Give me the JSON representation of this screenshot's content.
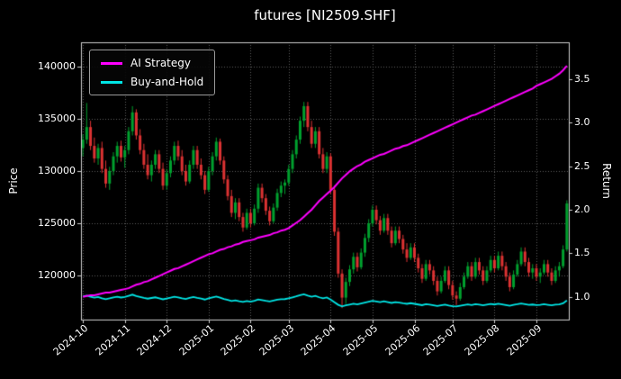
{
  "title": "futures [NI2509.SHF]",
  "axes": {
    "left_label": "Price",
    "right_label": "Return"
  },
  "legend": {
    "items": [
      {
        "label": "AI Strategy",
        "series": "ai"
      },
      {
        "label": "Buy-and-Hold",
        "series": "bh"
      }
    ],
    "position": "upper-left"
  },
  "colors": {
    "bg": "#000000",
    "text": "#ffffff",
    "grid": "#5f5f5f",
    "frame": "#cfcfcf",
    "up": "#00a02e",
    "down": "#dc3232",
    "ai": "#ff00ff",
    "bh": "#00e5e5"
  },
  "chart_data": {
    "type": "candlestick+line",
    "title": "futures [NI2509.SHF]",
    "xlabel": "",
    "ylabel_left": "Price",
    "ylabel_right": "Return",
    "grid": "dotted",
    "legend_position": "upper-left",
    "price_ylim": [
      115800,
      142300
    ],
    "return_ylim": [
      0.74,
      3.92
    ],
    "price_ticks": [
      120000,
      125000,
      130000,
      135000,
      140000
    ],
    "return_ticks": [
      1.0,
      1.5,
      2.0,
      2.5,
      3.0,
      3.5
    ],
    "x_ticks": [
      {
        "label": "2024-10",
        "index": 0
      },
      {
        "label": "2024-11",
        "index": 11
      },
      {
        "label": "2024-12",
        "index": 22
      },
      {
        "label": "2025-01",
        "index": 33
      },
      {
        "label": "2025-02",
        "index": 44
      },
      {
        "label": "2025-03",
        "index": 54
      },
      {
        "label": "2025-04",
        "index": 65
      },
      {
        "label": "2025-05",
        "index": 76
      },
      {
        "label": "2025-06",
        "index": 87
      },
      {
        "label": "2025-07",
        "index": 97
      },
      {
        "label": "2025-08",
        "index": 108
      },
      {
        "label": "2025-09",
        "index": 119
      }
    ],
    "candles": [
      [
        132200,
        133500,
        131400,
        133000
      ],
      [
        133000,
        136500,
        132600,
        134200
      ],
      [
        134200,
        134800,
        132000,
        132400
      ],
      [
        132400,
        133200,
        130800,
        131200
      ],
      [
        131200,
        132600,
        130600,
        132200
      ],
      [
        132200,
        132800,
        129800,
        130200
      ],
      [
        130200,
        131000,
        128400,
        128800
      ],
      [
        128800,
        130400,
        128200,
        130000
      ],
      [
        130000,
        131800,
        129600,
        131400
      ],
      [
        131400,
        132800,
        130800,
        132400
      ],
      [
        132400,
        132900,
        130900,
        131300
      ],
      [
        131300,
        132400,
        130300,
        132000
      ],
      [
        132000,
        134200,
        131600,
        133800
      ],
      [
        133800,
        136200,
        133400,
        135600
      ],
      [
        135600,
        135900,
        133000,
        133400
      ],
      [
        133400,
        134000,
        131600,
        132000
      ],
      [
        132000,
        132600,
        130200,
        130600
      ],
      [
        130600,
        131600,
        129200,
        129600
      ],
      [
        129600,
        131000,
        129000,
        130600
      ],
      [
        130600,
        132000,
        130200,
        131600
      ],
      [
        131600,
        132000,
        129800,
        130200
      ],
      [
        130200,
        130800,
        128200,
        128600
      ],
      [
        128600,
        130200,
        128200,
        129800
      ],
      [
        129800,
        131400,
        129400,
        131000
      ],
      [
        131000,
        132800,
        130600,
        132400
      ],
      [
        132400,
        132900,
        131000,
        131400
      ],
      [
        131400,
        132000,
        129600,
        130000
      ],
      [
        130000,
        130600,
        128600,
        129000
      ],
      [
        129000,
        131000,
        128800,
        130600
      ],
      [
        130600,
        132400,
        130200,
        132000
      ],
      [
        132000,
        132400,
        130200,
        130600
      ],
      [
        130600,
        131200,
        129200,
        129600
      ],
      [
        129600,
        130000,
        127800,
        128200
      ],
      [
        128200,
        130400,
        128000,
        130000
      ],
      [
        130000,
        131800,
        129600,
        131400
      ],
      [
        131400,
        133200,
        131000,
        132800
      ],
      [
        132800,
        133100,
        130600,
        131000
      ],
      [
        131000,
        131400,
        128800,
        129200
      ],
      [
        129200,
        129600,
        127200,
        127600
      ],
      [
        127600,
        128200,
        125600,
        126000
      ],
      [
        126000,
        127400,
        125400,
        127000
      ],
      [
        127000,
        127400,
        125200,
        125600
      ],
      [
        125600,
        126000,
        124200,
        124600
      ],
      [
        124600,
        126400,
        124400,
        126000
      ],
      [
        126000,
        126400,
        124600,
        125000
      ],
      [
        125000,
        126800,
        124800,
        126400
      ],
      [
        126400,
        128800,
        126000,
        128400
      ],
      [
        128400,
        128800,
        127000,
        127400
      ],
      [
        127400,
        127800,
        125800,
        126200
      ],
      [
        126200,
        126600,
        124800,
        125200
      ],
      [
        125200,
        126900,
        125000,
        126500
      ],
      [
        126500,
        128300,
        126200,
        127900
      ],
      [
        127900,
        129000,
        127500,
        128600
      ],
      [
        128600,
        129200,
        127800,
        128900
      ],
      [
        128900,
        130600,
        128600,
        130200
      ],
      [
        130200,
        132000,
        129800,
        131600
      ],
      [
        131600,
        133400,
        131200,
        133000
      ],
      [
        133000,
        135200,
        132600,
        134800
      ],
      [
        134800,
        136600,
        134200,
        136200
      ],
      [
        136200,
        136600,
        133800,
        134200
      ],
      [
        134200,
        134800,
        132200,
        132600
      ],
      [
        132600,
        134200,
        132200,
        133800
      ],
      [
        133800,
        134200,
        131200,
        131600
      ],
      [
        131600,
        132200,
        129800,
        130200
      ],
      [
        130200,
        131800,
        129800,
        131400
      ],
      [
        131400,
        131700,
        127800,
        128200
      ],
      [
        128200,
        128600,
        123800,
        124200
      ],
      [
        124200,
        124600,
        119800,
        120200
      ],
      [
        120200,
        120600,
        116900,
        117900
      ],
      [
        117900,
        119800,
        117300,
        119400
      ],
      [
        119400,
        121000,
        119000,
        120600
      ],
      [
        120600,
        122200,
        120200,
        121800
      ],
      [
        121800,
        122200,
        120400,
        120800
      ],
      [
        120800,
        122600,
        120600,
        122200
      ],
      [
        122200,
        124000,
        121800,
        123600
      ],
      [
        123600,
        125400,
        123200,
        125000
      ],
      [
        125000,
        126700,
        124700,
        126300
      ],
      [
        126300,
        126700,
        124900,
        125300
      ],
      [
        125300,
        125700,
        123900,
        124300
      ],
      [
        124300,
        125900,
        124100,
        125500
      ],
      [
        125500,
        125900,
        123900,
        124300
      ],
      [
        124300,
        124700,
        122700,
        123100
      ],
      [
        123100,
        124700,
        122900,
        124300
      ],
      [
        124300,
        124700,
        123100,
        123500
      ],
      [
        123500,
        123900,
        122100,
        122500
      ],
      [
        122500,
        123100,
        121300,
        121700
      ],
      [
        121700,
        123100,
        121500,
        122700
      ],
      [
        122700,
        123100,
        121300,
        121700
      ],
      [
        121700,
        122100,
        120300,
        120700
      ],
      [
        120700,
        121100,
        119300,
        119700
      ],
      [
        119700,
        121500,
        119500,
        121100
      ],
      [
        121100,
        121500,
        120100,
        120500
      ],
      [
        120500,
        120900,
        119100,
        119500
      ],
      [
        119500,
        119900,
        118100,
        118500
      ],
      [
        118500,
        119900,
        118300,
        119500
      ],
      [
        119500,
        120900,
        119300,
        120500
      ],
      [
        120500,
        120900,
        118700,
        119100
      ],
      [
        119100,
        119500,
        117700,
        118100
      ],
      [
        118100,
        118500,
        117200,
        117800
      ],
      [
        117800,
        119300,
        117600,
        118900
      ],
      [
        118900,
        120300,
        118700,
        119900
      ],
      [
        119900,
        121300,
        119700,
        120900
      ],
      [
        120900,
        121300,
        119500,
        119900
      ],
      [
        119900,
        121700,
        119700,
        121300
      ],
      [
        121300,
        121700,
        120100,
        120500
      ],
      [
        120500,
        120900,
        119100,
        119500
      ],
      [
        119500,
        120900,
        119300,
        120500
      ],
      [
        120500,
        121900,
        120300,
        121500
      ],
      [
        121500,
        121900,
        120300,
        120700
      ],
      [
        120700,
        122300,
        120500,
        121900
      ],
      [
        121900,
        122300,
        120500,
        120900
      ],
      [
        120900,
        121300,
        119500,
        119900
      ],
      [
        119900,
        120300,
        118500,
        118900
      ],
      [
        118900,
        120500,
        118700,
        120100
      ],
      [
        120100,
        121500,
        119900,
        121100
      ],
      [
        121100,
        122700,
        120900,
        122300
      ],
      [
        122300,
        122700,
        120900,
        121300
      ],
      [
        121300,
        121700,
        119900,
        120300
      ],
      [
        120300,
        121100,
        119700,
        120700
      ],
      [
        120700,
        121100,
        119500,
        119900
      ],
      [
        119900,
        120700,
        119300,
        120300
      ],
      [
        120300,
        121500,
        120100,
        121100
      ],
      [
        121100,
        121500,
        119900,
        120300
      ],
      [
        120300,
        120700,
        119100,
        119500
      ],
      [
        119500,
        120900,
        119300,
        120500
      ],
      [
        120500,
        121300,
        119900,
        120900
      ],
      [
        120900,
        122900,
        120700,
        122500
      ],
      [
        122500,
        127200,
        122300,
        126900
      ]
    ],
    "ai_returns": [
      1.0,
      1.01,
      1.02,
      1.02,
      1.03,
      1.04,
      1.05,
      1.05,
      1.06,
      1.07,
      1.08,
      1.09,
      1.1,
      1.12,
      1.14,
      1.15,
      1.17,
      1.18,
      1.2,
      1.22,
      1.24,
      1.26,
      1.28,
      1.3,
      1.32,
      1.33,
      1.35,
      1.37,
      1.39,
      1.41,
      1.43,
      1.45,
      1.47,
      1.49,
      1.5,
      1.52,
      1.54,
      1.55,
      1.57,
      1.58,
      1.6,
      1.61,
      1.63,
      1.64,
      1.65,
      1.66,
      1.68,
      1.69,
      1.7,
      1.71,
      1.73,
      1.74,
      1.76,
      1.77,
      1.79,
      1.82,
      1.85,
      1.88,
      1.92,
      1.96,
      2.0,
      2.05,
      2.1,
      2.14,
      2.18,
      2.22,
      2.26,
      2.31,
      2.36,
      2.4,
      2.44,
      2.47,
      2.5,
      2.52,
      2.55,
      2.57,
      2.59,
      2.61,
      2.63,
      2.64,
      2.66,
      2.68,
      2.7,
      2.71,
      2.73,
      2.74,
      2.76,
      2.78,
      2.8,
      2.82,
      2.84,
      2.86,
      2.88,
      2.9,
      2.92,
      2.94,
      2.96,
      2.98,
      3.0,
      3.02,
      3.04,
      3.06,
      3.08,
      3.09,
      3.11,
      3.13,
      3.15,
      3.17,
      3.19,
      3.21,
      3.23,
      3.25,
      3.27,
      3.29,
      3.31,
      3.33,
      3.35,
      3.37,
      3.39,
      3.42,
      3.44,
      3.46,
      3.48,
      3.5,
      3.53,
      3.56,
      3.6,
      3.65
    ],
    "series": [
      {
        "name": "AI Strategy",
        "axis": "return",
        "source": "ai_returns"
      },
      {
        "name": "Buy-and-Hold",
        "axis": "return",
        "source": "close_over_first_open"
      }
    ]
  }
}
